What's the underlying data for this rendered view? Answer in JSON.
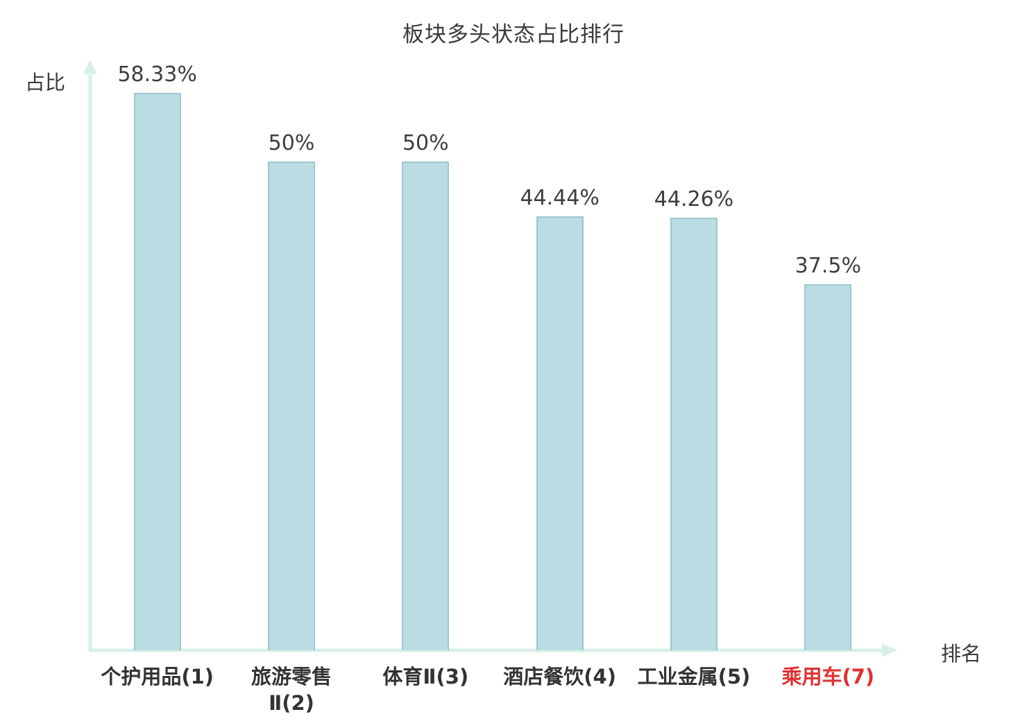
{
  "chart_data": {
    "type": "bar",
    "title": "板块多头状态占比排行",
    "ylabel": "占比",
    "xlabel": "排名",
    "categories": [
      "个护用品(1)",
      "旅游零售Ⅱ(2)",
      "体育Ⅱ(3)",
      "酒店餐饮(4)",
      "工业金属(5)",
      "乘用车(7)"
    ],
    "values": [
      58.33,
      50,
      50,
      44.44,
      44.26,
      37.5
    ],
    "value_labels": [
      "58.33%",
      "50%",
      "50%",
      "44.44%",
      "44.26%",
      "37.5%"
    ],
    "category_lines": [
      [
        "个护用品(1)"
      ],
      [
        "旅游零售",
        "Ⅱ(2)"
      ],
      [
        "体育Ⅱ(3)"
      ],
      [
        "酒店餐饮(4)"
      ],
      [
        "工业金属(5)"
      ],
      [
        "乘用车(7)"
      ]
    ],
    "category_colors": [
      "#333333",
      "#333333",
      "#333333",
      "#333333",
      "#333333",
      "#e03131"
    ],
    "highlighted_category": "乘用车(7)",
    "ylim": [
      0,
      60
    ],
    "grid": false,
    "legend": false,
    "colors": {
      "bar_fill": "#b9dde2",
      "bar_border": "#9cc8d0",
      "axis": "#d8efe7",
      "text": "#3a3a3a",
      "highlight": "#e03131"
    }
  }
}
